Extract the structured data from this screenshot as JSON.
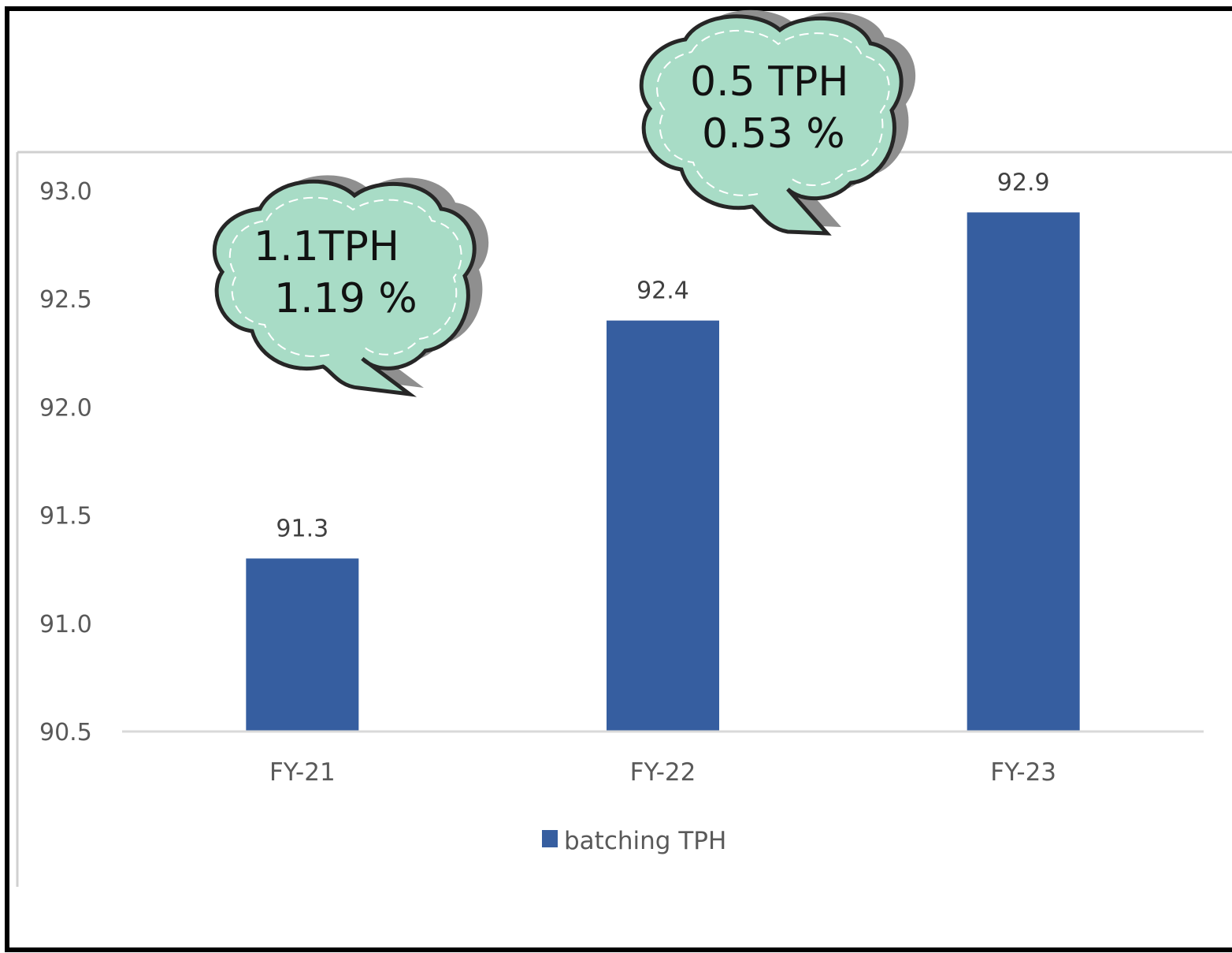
{
  "chart_data": {
    "type": "bar",
    "categories": [
      "FY-21",
      "FY-22",
      "FY-23"
    ],
    "series": [
      {
        "name": "batching TPH",
        "values": [
          91.3,
          92.4,
          92.9
        ],
        "color": "#365ea0"
      }
    ],
    "data_labels": [
      "91.3",
      "92.4",
      "92.9"
    ],
    "ylim": [
      90.5,
      93.0
    ],
    "yticks": [
      "90.5",
      "91.0",
      "91.5",
      "92.0",
      "92.5",
      "93.0"
    ],
    "grid": false,
    "legend_position": "bottom",
    "legend_label": "batching TPH",
    "annotations": [
      {
        "line1": "1.1TPH",
        "line2": "1.19 %"
      },
      {
        "line1": "0.5 TPH",
        "line2": "0.53 %"
      }
    ],
    "callout_color": "#a8dcc6"
  }
}
